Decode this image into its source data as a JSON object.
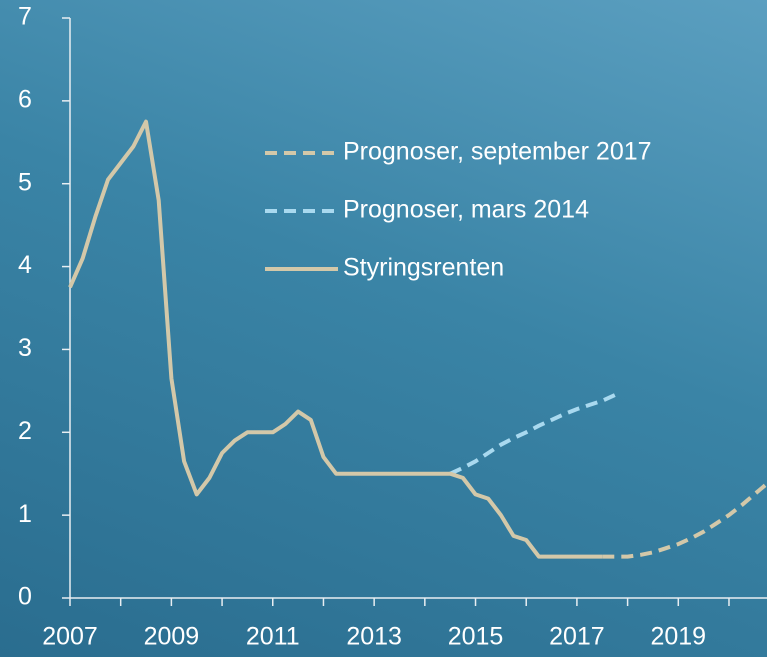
{
  "chart_data": {
    "type": "line",
    "x": [
      2007,
      2007.25,
      2007.5,
      2007.75,
      2008,
      2008.25,
      2008.5,
      2008.75,
      2009,
      2009.25,
      2009.5,
      2009.75,
      2010,
      2010.25,
      2010.5,
      2010.75,
      2011,
      2011.25,
      2011.5,
      2011.75,
      2012,
      2012.25,
      2012.5,
      2012.75,
      2013,
      2013.25,
      2013.5,
      2013.75,
      2014,
      2014.25,
      2014.5,
      2014.75,
      2015,
      2015.25,
      2015.5,
      2015.75,
      2016,
      2016.25,
      2016.5,
      2016.75,
      2017,
      2017.25,
      2017.5,
      2017.75,
      2018,
      2018.25,
      2018.5,
      2018.75,
      2019,
      2019.25,
      2019.5,
      2019.75,
      2020,
      2020.25,
      2020.5,
      2020.75
    ],
    "series": [
      {
        "name": "Prognoser, september 2017",
        "color": "#d3c8a9",
        "dashed": true,
        "values": [
          null,
          null,
          null,
          null,
          null,
          null,
          null,
          null,
          null,
          null,
          null,
          null,
          null,
          null,
          null,
          null,
          null,
          null,
          null,
          null,
          null,
          null,
          null,
          null,
          null,
          null,
          null,
          null,
          null,
          null,
          null,
          null,
          null,
          null,
          null,
          null,
          null,
          null,
          null,
          null,
          null,
          null,
          0.5,
          0.5,
          0.5,
          0.52,
          0.55,
          0.6,
          0.65,
          0.72,
          0.8,
          0.9,
          1.0,
          1.12,
          1.25,
          1.38
        ]
      },
      {
        "name": "Prognoser, mars 2014",
        "color": "#a9d9ef",
        "dashed": true,
        "values": [
          null,
          null,
          null,
          null,
          null,
          null,
          null,
          null,
          null,
          null,
          null,
          null,
          null,
          null,
          null,
          null,
          null,
          null,
          null,
          null,
          null,
          null,
          null,
          null,
          null,
          null,
          null,
          null,
          null,
          null,
          1.5,
          1.57,
          1.65,
          1.75,
          1.85,
          1.93,
          2.0,
          2.08,
          2.15,
          2.22,
          2.28,
          2.33,
          2.38,
          2.45,
          null,
          null,
          null,
          null,
          null,
          null,
          null,
          null,
          null,
          null,
          null,
          null
        ]
      },
      {
        "name": "Styringsrenten",
        "color": "#d3c8a9",
        "dashed": false,
        "values": [
          3.75,
          4.1,
          4.6,
          5.05,
          5.25,
          5.45,
          5.75,
          4.8,
          2.65,
          1.65,
          1.25,
          1.45,
          1.75,
          1.9,
          2.0,
          2.0,
          2.0,
          2.1,
          2.25,
          2.15,
          1.7,
          1.5,
          1.5,
          1.5,
          1.5,
          1.5,
          1.5,
          1.5,
          1.5,
          1.5,
          1.5,
          1.45,
          1.25,
          1.2,
          1.0,
          0.75,
          0.7,
          0.5,
          0.5,
          0.5,
          0.5,
          0.5,
          0.5,
          null,
          null,
          null,
          null,
          null,
          null,
          null,
          null,
          null,
          null,
          null,
          null,
          null
        ]
      }
    ],
    "xlim": [
      2007,
      2020.75
    ],
    "xticks": [
      2007,
      2009,
      2011,
      2013,
      2015,
      2017,
      2019
    ],
    "xminor_ticks": [
      2008,
      2010,
      2012,
      2014,
      2016,
      2018,
      2020
    ],
    "ylim": [
      0,
      7
    ],
    "yticks": [
      0,
      1,
      2,
      3,
      4,
      5,
      6,
      7
    ],
    "grid": false,
    "legend": "upper right"
  }
}
